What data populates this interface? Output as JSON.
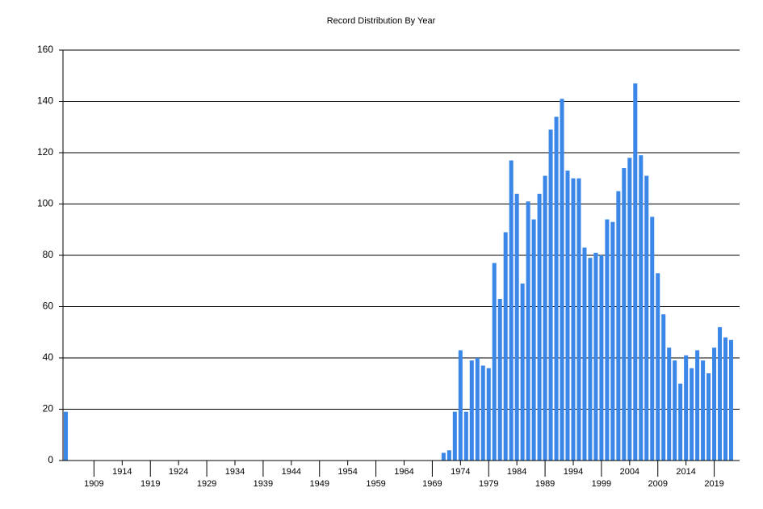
{
  "chart_data": {
    "type": "bar",
    "title": "Record Distribution By Year",
    "x": [
      1904,
      1971,
      1972,
      1973,
      1974,
      1975,
      1976,
      1977,
      1978,
      1979,
      1980,
      1981,
      1982,
      1983,
      1984,
      1985,
      1986,
      1987,
      1988,
      1989,
      1990,
      1991,
      1992,
      1993,
      1994,
      1995,
      1996,
      1997,
      1998,
      1999,
      2000,
      2001,
      2002,
      2003,
      2004,
      2005,
      2006,
      2007,
      2008,
      2009,
      2010,
      2011,
      2012,
      2013,
      2014,
      2015,
      2016,
      2017,
      2018,
      2019,
      2020,
      2021,
      2022
    ],
    "values": [
      19,
      3,
      4,
      19,
      43,
      19,
      39,
      40,
      37,
      36,
      77,
      63,
      89,
      117,
      104,
      69,
      101,
      94,
      104,
      111,
      129,
      134,
      141,
      113,
      110,
      110,
      83,
      79,
      81,
      80,
      94,
      93,
      105,
      114,
      118,
      147,
      119,
      111,
      95,
      73,
      57,
      44,
      39,
      30,
      41,
      36,
      43,
      39,
      34,
      44,
      52,
      48,
      47
    ],
    "color": "#3a87e8",
    "xlim": [
      1903.5,
      2023.5
    ],
    "xticks": [
      1909,
      1914,
      1919,
      1924,
      1929,
      1934,
      1939,
      1944,
      1949,
      1954,
      1959,
      1964,
      1969,
      1974,
      1979,
      1984,
      1989,
      1994,
      1999,
      2004,
      2009,
      2014,
      2019
    ],
    "ylim": [
      0,
      160
    ],
    "yticks": [
      0,
      20,
      40,
      60,
      80,
      100,
      120,
      140,
      160
    ],
    "grid": true
  }
}
